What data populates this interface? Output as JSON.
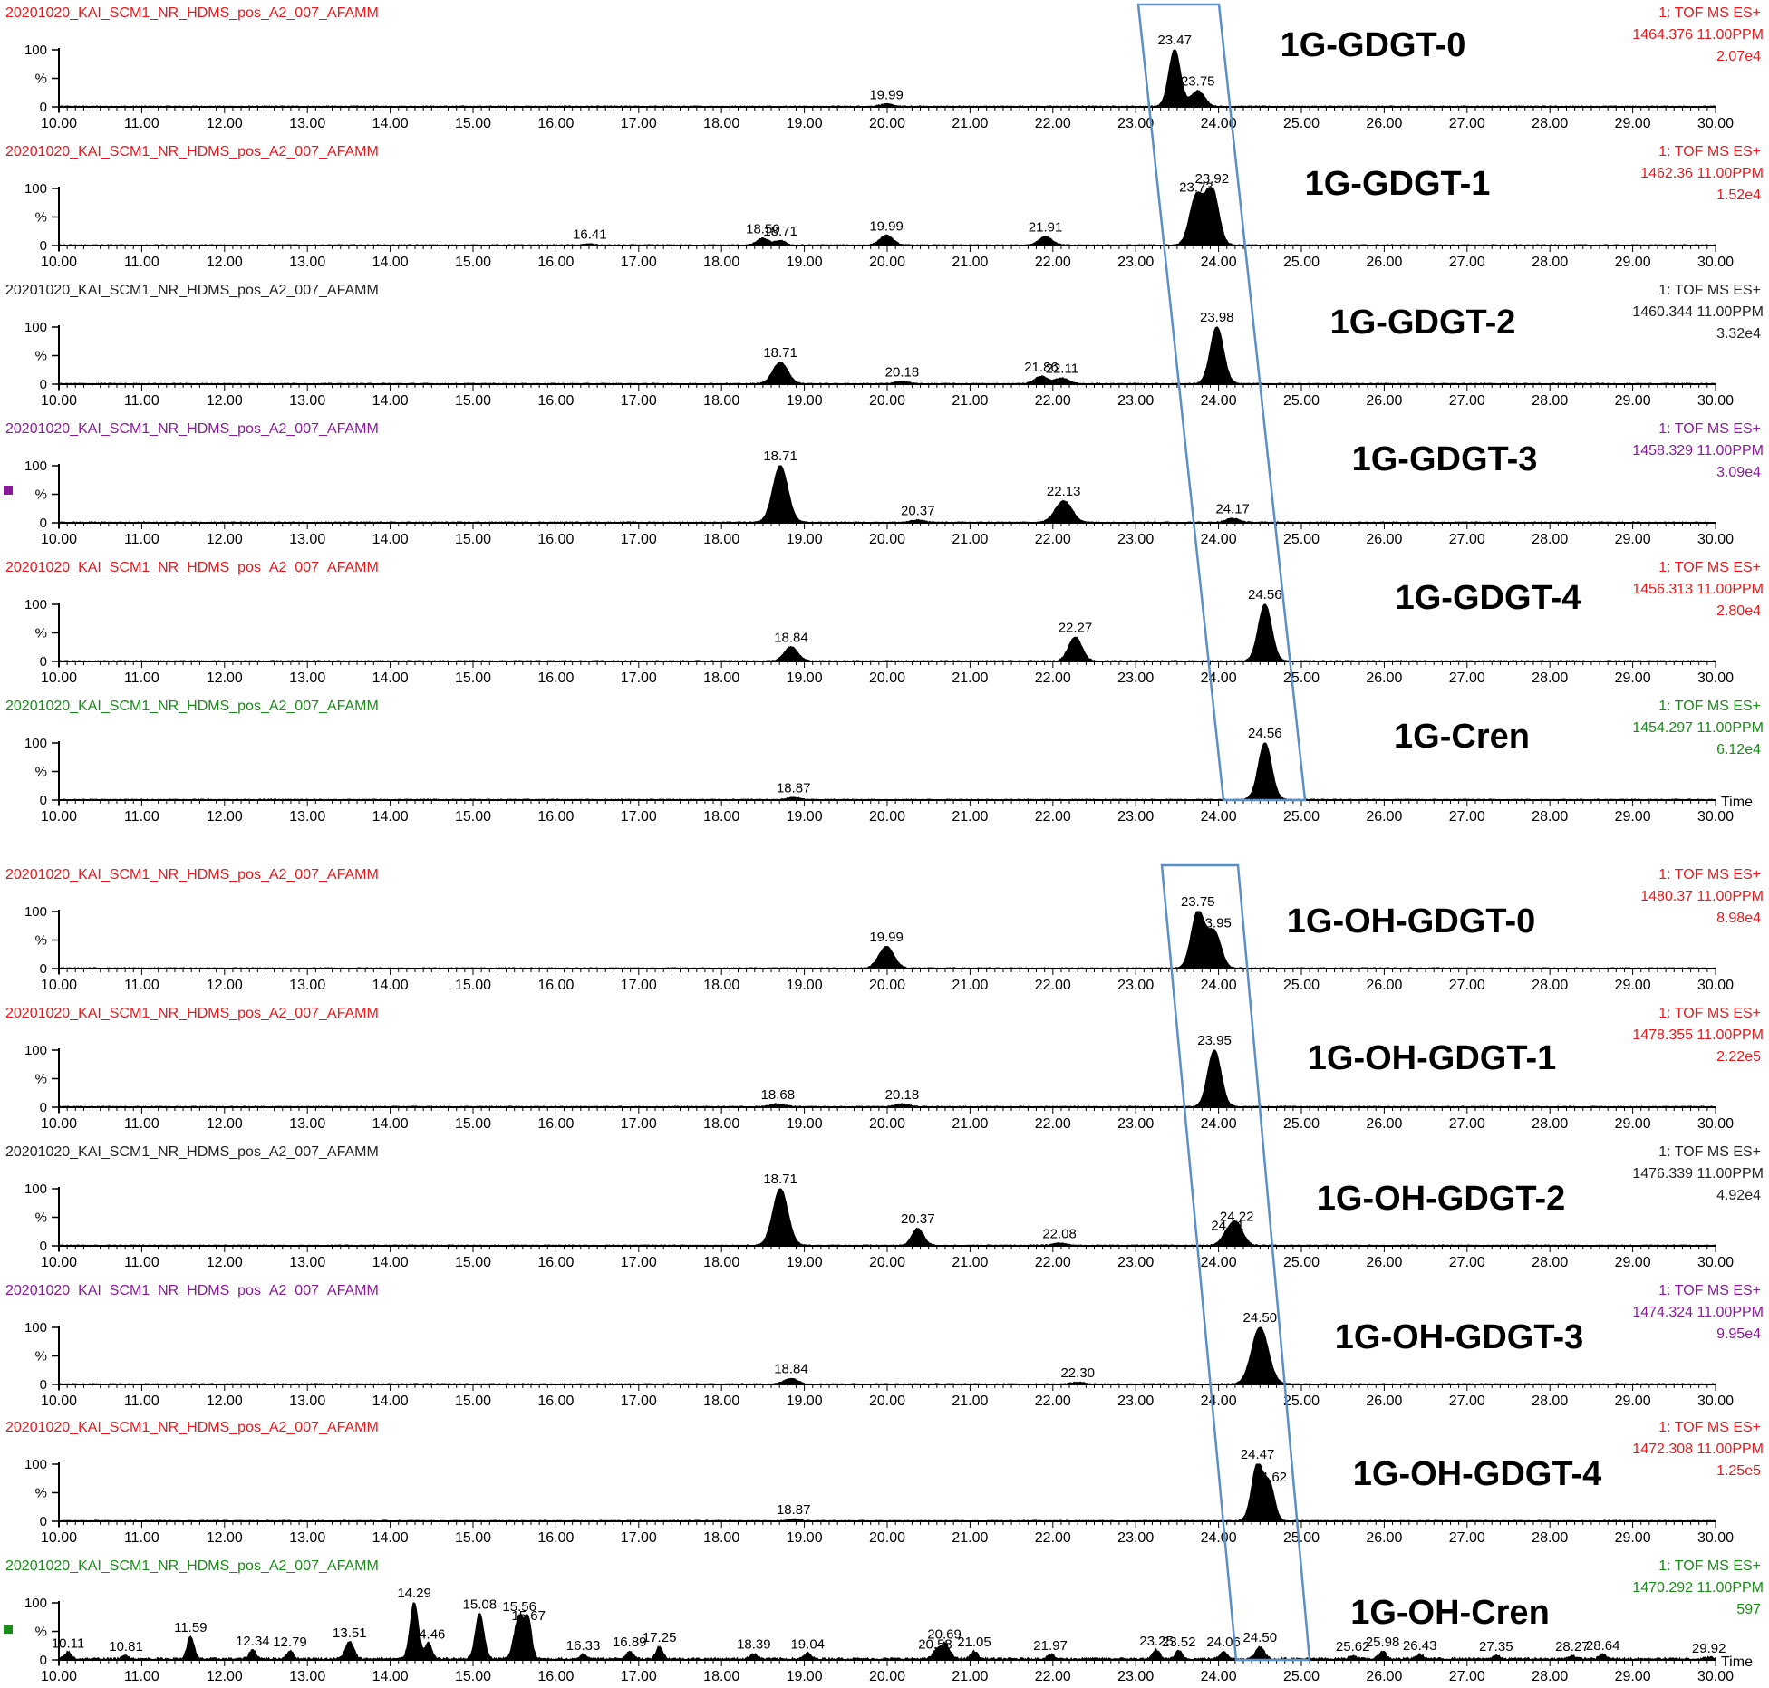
{
  "chart_data": {
    "type": "line",
    "x_axis": {
      "range": [
        10.0,
        30.0
      ],
      "ticks": [
        "10.00",
        "11.00",
        "12.00",
        "13.00",
        "14.00",
        "15.00",
        "16.00",
        "17.00",
        "18.00",
        "19.00",
        "20.00",
        "21.00",
        "22.00",
        "23.00",
        "24.00",
        "25.00",
        "26.00",
        "27.00",
        "28.00",
        "29.00",
        "30.00"
      ],
      "label": "Time"
    },
    "y_axis": {
      "ticks": [
        "100",
        "%",
        "0"
      ]
    },
    "colors": {
      "red": "#e8181c",
      "dark": "#222222",
      "purple": "#8a1a9b",
      "green": "#1a8a1a",
      "box": "#5b8fc7"
    },
    "panels": [
      {
        "id": "p0",
        "file": "20201020_KAI_SCM1_NR_HDMS_pos_A2_007_AFAMM",
        "mode": "1: TOF MS ES+",
        "mz": "1464.376 11.00PPM",
        "intensity": "2.07e4",
        "color": "red",
        "compound": "1G-GDGT-0",
        "peaks": [
          {
            "rt": 23.47,
            "h": 100,
            "w": 0.07,
            "label": "23.47"
          },
          {
            "rt": 23.75,
            "h": 28,
            "w": 0.08,
            "label": "23.75"
          },
          {
            "rt": 19.99,
            "h": 4,
            "w": 0.08,
            "label": "19.99"
          }
        ]
      },
      {
        "id": "p1",
        "file": "20201020_KAI_SCM1_NR_HDMS_pos_A2_007_AFAMM",
        "mode": "1: TOF MS ES+",
        "mz": "1462.36 11.00PPM",
        "intensity": "1.52e4",
        "color": "red",
        "compound": "1G-GDGT-1",
        "peaks": [
          {
            "rt": 23.73,
            "h": 85,
            "w": 0.08,
            "label": "23.73"
          },
          {
            "rt": 23.92,
            "h": 100,
            "w": 0.08,
            "label": "23.92"
          },
          {
            "rt": 16.41,
            "h": 2,
            "w": 0.06,
            "label": "16.41"
          },
          {
            "rt": 18.5,
            "h": 12,
            "w": 0.07,
            "label": "18.50"
          },
          {
            "rt": 18.71,
            "h": 8,
            "w": 0.06,
            "label": "18.71"
          },
          {
            "rt": 19.99,
            "h": 17,
            "w": 0.08,
            "label": "19.99"
          },
          {
            "rt": 21.91,
            "h": 15,
            "w": 0.08,
            "label": "21.91"
          }
        ]
      },
      {
        "id": "p2",
        "file": "20201020_KAI_SCM1_NR_HDMS_pos_A2_007_AFAMM",
        "mode": "1: TOF MS ES+",
        "mz": "1460.344 11.00PPM",
        "intensity": "3.32e4",
        "color": "dark",
        "compound": "1G-GDGT-2",
        "peaks": [
          {
            "rt": 23.98,
            "h": 100,
            "w": 0.08,
            "label": "23.98"
          },
          {
            "rt": 18.71,
            "h": 38,
            "w": 0.09,
            "label": "18.71"
          },
          {
            "rt": 20.18,
            "h": 4,
            "w": 0.08,
            "label": "20.18"
          },
          {
            "rt": 21.86,
            "h": 13,
            "w": 0.08,
            "label": "21.86"
          },
          {
            "rt": 22.11,
            "h": 10,
            "w": 0.08,
            "label": "22.11"
          }
        ]
      },
      {
        "id": "p3",
        "file": "20201020_KAI_SCM1_NR_HDMS_pos_A2_007_AFAMM",
        "mode": "1: TOF MS ES+",
        "mz": "1458.329 11.00PPM",
        "intensity": "3.09e4",
        "color": "purple",
        "compound": "1G-GDGT-3",
        "peaks": [
          {
            "rt": 18.71,
            "h": 100,
            "w": 0.09,
            "label": "18.71"
          },
          {
            "rt": 20.37,
            "h": 4,
            "w": 0.08,
            "label": "20.37"
          },
          {
            "rt": 22.13,
            "h": 38,
            "w": 0.1,
            "label": "22.13"
          },
          {
            "rt": 24.17,
            "h": 7,
            "w": 0.08,
            "label": "24.17"
          }
        ]
      },
      {
        "id": "p4",
        "file": "20201020_KAI_SCM1_NR_HDMS_pos_A2_007_AFAMM",
        "mode": "1: TOF MS ES+",
        "mz": "1456.313 11.00PPM",
        "intensity": "2.80e4",
        "color": "red",
        "compound": "1G-GDGT-4",
        "peaks": [
          {
            "rt": 24.56,
            "h": 100,
            "w": 0.08,
            "label": "24.56"
          },
          {
            "rt": 18.84,
            "h": 25,
            "w": 0.08,
            "label": "18.84"
          },
          {
            "rt": 22.27,
            "h": 42,
            "w": 0.08,
            "label": "22.27"
          }
        ]
      },
      {
        "id": "p5",
        "file": "20201020_KAI_SCM1_NR_HDMS_pos_A2_007_AFAMM",
        "mode": "1: TOF MS ES+",
        "mz": "1454.297 11.00PPM",
        "intensity": "6.12e4",
        "color": "green",
        "compound": "1G-Cren",
        "time_label": true,
        "peaks": [
          {
            "rt": 24.56,
            "h": 100,
            "w": 0.08,
            "label": "24.56"
          },
          {
            "rt": 18.87,
            "h": 4,
            "w": 0.07,
            "label": "18.87"
          }
        ]
      },
      {
        "id": "p6",
        "file": "20201020_KAI_SCM1_NR_HDMS_pos_A2_007_AFAMM",
        "mode": "1: TOF MS ES+",
        "mz": "1480.37 11.00PPM",
        "intensity": "8.98e4",
        "color": "red",
        "compound": "1G-OH-GDGT-0",
        "peaks": [
          {
            "rt": 23.75,
            "h": 100,
            "w": 0.08,
            "label": "23.75"
          },
          {
            "rt": 23.95,
            "h": 63,
            "w": 0.08,
            "label": "23.95"
          },
          {
            "rt": 19.99,
            "h": 38,
            "w": 0.09,
            "label": "19.99"
          }
        ]
      },
      {
        "id": "p7",
        "file": "20201020_KAI_SCM1_NR_HDMS_pos_A2_007_AFAMM",
        "mode": "1: TOF MS ES+",
        "mz": "1478.355 11.00PPM",
        "intensity": "2.22e5",
        "color": "red",
        "compound": "1G-OH-GDGT-1",
        "peaks": [
          {
            "rt": 23.95,
            "h": 100,
            "w": 0.08,
            "label": "23.95"
          },
          {
            "rt": 18.68,
            "h": 5,
            "w": 0.09,
            "label": "18.68"
          },
          {
            "rt": 20.18,
            "h": 5,
            "w": 0.08,
            "label": "20.18"
          }
        ]
      },
      {
        "id": "p8",
        "file": "20201020_KAI_SCM1_NR_HDMS_pos_A2_007_AFAMM",
        "mode": "1: TOF MS ES+",
        "mz": "1476.339 11.00PPM",
        "intensity": "4.92e4",
        "color": "dark",
        "compound": "1G-OH-GDGT-2",
        "peaks": [
          {
            "rt": 18.71,
            "h": 100,
            "w": 0.09,
            "label": "18.71"
          },
          {
            "rt": 20.37,
            "h": 30,
            "w": 0.07,
            "label": "20.37"
          },
          {
            "rt": 22.08,
            "h": 4,
            "w": 0.08,
            "label": "22.08"
          },
          {
            "rt": 24.11,
            "h": 18,
            "w": 0.08,
            "label": "24.11"
          },
          {
            "rt": 24.22,
            "h": 34,
            "w": 0.08,
            "label": "24.22"
          }
        ]
      },
      {
        "id": "p9",
        "file": "20201020_KAI_SCM1_NR_HDMS_pos_A2_007_AFAMM",
        "mode": "1: TOF MS ES+",
        "mz": "1474.324 11.00PPM",
        "intensity": "9.95e4",
        "color": "purple",
        "compound": "1G-OH-GDGT-3",
        "peaks": [
          {
            "rt": 24.5,
            "h": 100,
            "w": 0.1,
            "label": "24.50"
          },
          {
            "rt": 18.84,
            "h": 10,
            "w": 0.08,
            "label": "18.84"
          },
          {
            "rt": 22.3,
            "h": 3,
            "w": 0.08,
            "label": "22.30"
          }
        ]
      },
      {
        "id": "p10",
        "file": "20201020_KAI_SCM1_NR_HDMS_pos_A2_007_AFAMM",
        "mode": "1: TOF MS ES+",
        "mz": "1472.308 11.00PPM",
        "intensity": "1.25e5",
        "color": "red",
        "compound": "1G-OH-GDGT-4",
        "peaks": [
          {
            "rt": 24.47,
            "h": 100,
            "w": 0.07,
            "label": "24.47"
          },
          {
            "rt": 24.62,
            "h": 60,
            "w": 0.06,
            "label": "24.62"
          },
          {
            "rt": 18.87,
            "h": 3,
            "w": 0.07,
            "label": "18.87"
          }
        ]
      },
      {
        "id": "p11",
        "file": "20201020_KAI_SCM1_NR_HDMS_pos_A2_007_AFAMM",
        "mode": "1: TOF MS ES+",
        "mz": "1470.292 11.00PPM",
        "intensity": "597",
        "color": "green",
        "compound": "1G-OH-Cren",
        "time_label": true,
        "peaks": [
          {
            "rt": 10.11,
            "h": 12,
            "w": 0.04,
            "label": "10.11"
          },
          {
            "rt": 10.81,
            "h": 6,
            "w": 0.04,
            "label": "10.81"
          },
          {
            "rt": 11.59,
            "h": 40,
            "w": 0.04,
            "label": "11.59"
          },
          {
            "rt": 12.34,
            "h": 16,
            "w": 0.04,
            "label": "12.34"
          },
          {
            "rt": 12.79,
            "h": 14,
            "w": 0.04,
            "label": "12.79"
          },
          {
            "rt": 13.51,
            "h": 30,
            "w": 0.05,
            "label": "13.51"
          },
          {
            "rt": 14.29,
            "h": 100,
            "w": 0.05,
            "label": "14.29"
          },
          {
            "rt": 14.46,
            "h": 28,
            "w": 0.04,
            "label": "14.46"
          },
          {
            "rt": 15.08,
            "h": 80,
            "w": 0.05,
            "label": "15.08"
          },
          {
            "rt": 15.56,
            "h": 76,
            "w": 0.06,
            "label": "15.56"
          },
          {
            "rt": 15.67,
            "h": 60,
            "w": 0.04,
            "label": "15.67"
          },
          {
            "rt": 16.33,
            "h": 8,
            "w": 0.04,
            "label": "16.33"
          },
          {
            "rt": 16.89,
            "h": 14,
            "w": 0.04,
            "label": "16.89"
          },
          {
            "rt": 17.25,
            "h": 22,
            "w": 0.04,
            "label": "17.25"
          },
          {
            "rt": 18.39,
            "h": 10,
            "w": 0.04,
            "label": "18.39"
          },
          {
            "rt": 19.04,
            "h": 10,
            "w": 0.04,
            "label": "19.04"
          },
          {
            "rt": 20.58,
            "h": 10,
            "w": 0.04,
            "label": "20.58"
          },
          {
            "rt": 20.69,
            "h": 28,
            "w": 0.06,
            "label": "20.69"
          },
          {
            "rt": 21.05,
            "h": 14,
            "w": 0.04,
            "label": "21.05"
          },
          {
            "rt": 21.97,
            "h": 8,
            "w": 0.04,
            "label": "21.97"
          },
          {
            "rt": 23.25,
            "h": 16,
            "w": 0.04,
            "label": "23.25"
          },
          {
            "rt": 23.52,
            "h": 14,
            "w": 0.04,
            "label": "23.52"
          },
          {
            "rt": 24.06,
            "h": 14,
            "w": 0.04,
            "label": "24.06"
          },
          {
            "rt": 24.5,
            "h": 22,
            "w": 0.05,
            "label": "24.50"
          },
          {
            "rt": 25.62,
            "h": 6,
            "w": 0.04,
            "label": "25.62"
          },
          {
            "rt": 25.98,
            "h": 14,
            "w": 0.04,
            "label": "25.98"
          },
          {
            "rt": 26.43,
            "h": 8,
            "w": 0.04,
            "label": "26.43"
          },
          {
            "rt": 27.35,
            "h": 6,
            "w": 0.04,
            "label": "27.35"
          },
          {
            "rt": 28.27,
            "h": 6,
            "w": 0.04,
            "label": "28.27"
          },
          {
            "rt": 28.64,
            "h": 8,
            "w": 0.04,
            "label": "28.64"
          },
          {
            "rt": 29.92,
            "h": 3,
            "w": 0.04,
            "label": "29.92"
          }
        ]
      }
    ]
  }
}
